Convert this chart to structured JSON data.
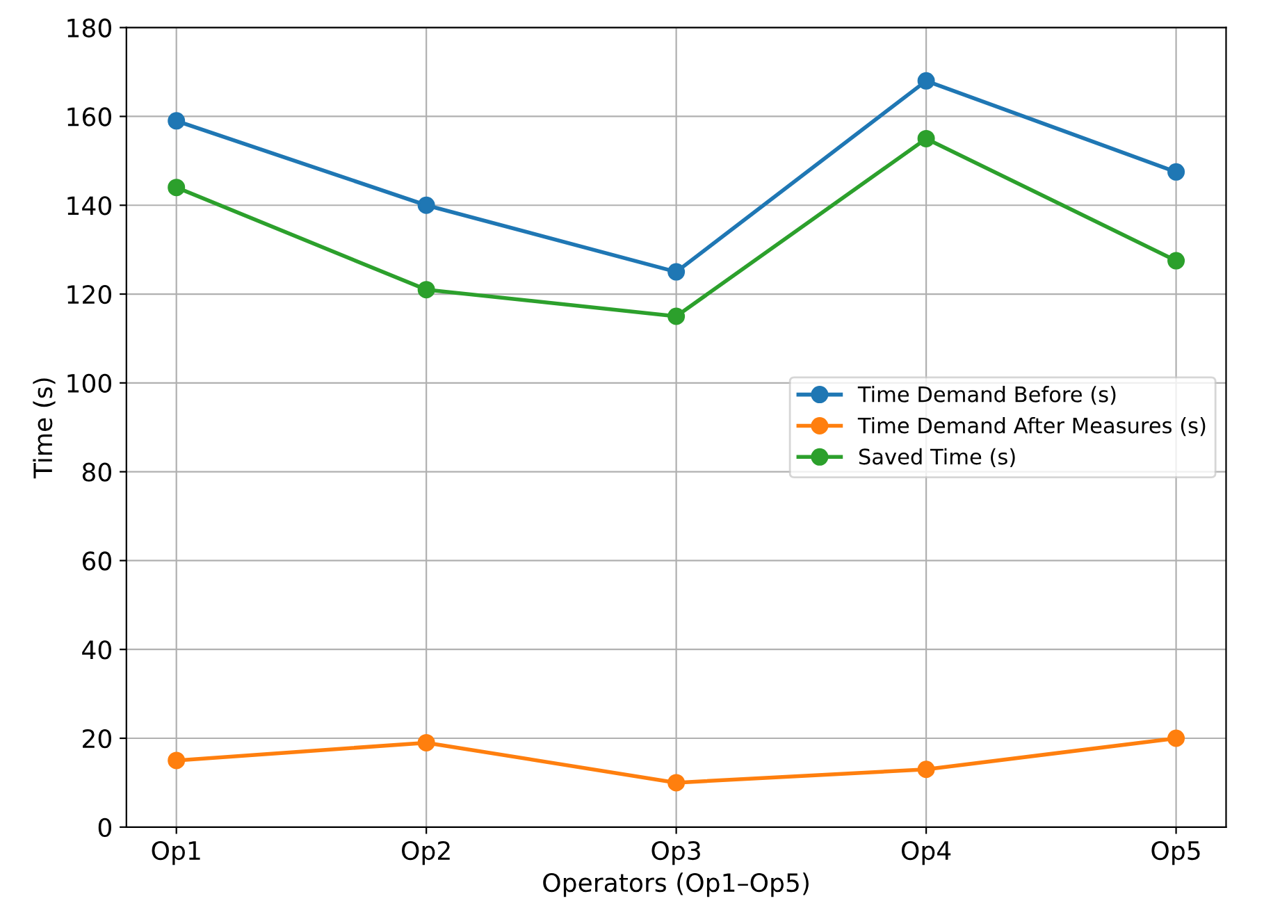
{
  "chart_data": {
    "type": "line",
    "xlabel": "Operators (Op1–Op5)",
    "ylabel": "Time (s)",
    "categories": [
      "Op1",
      "Op2",
      "Op3",
      "Op4",
      "Op5"
    ],
    "series": [
      {
        "name": "Time Demand Before (s)",
        "color": "#1f77b4",
        "values": [
          159,
          140,
          125,
          168,
          147.5
        ]
      },
      {
        "name": "Time Demand After Measures (s)",
        "color": "#ff7f0e",
        "values": [
          15,
          19,
          10,
          13,
          20
        ]
      },
      {
        "name": "Saved Time (s)",
        "color": "#2ca02c",
        "values": [
          144,
          121,
          115,
          155,
          127.5
        ]
      }
    ],
    "ylim": [
      0,
      180
    ],
    "yticks": [
      0,
      20,
      40,
      60,
      80,
      100,
      120,
      140,
      160,
      180
    ],
    "grid": true,
    "legend": "center right",
    "marker": "circle",
    "line_style": "solid"
  }
}
